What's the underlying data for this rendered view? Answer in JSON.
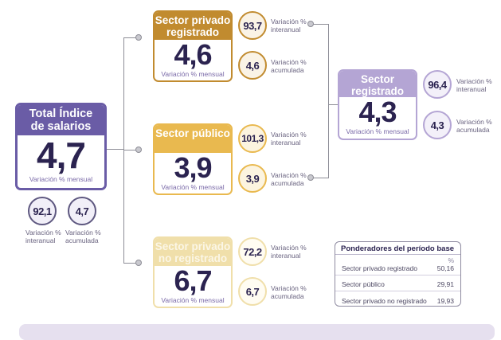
{
  "total": {
    "title": "Total Índice de salarios",
    "value": "4,7",
    "sub": "Variación % mensual",
    "interanual": "92,1",
    "acumulada": "4,7",
    "interanual_label": "Variación % interanual",
    "acumulada_label": "Variación % acumulada"
  },
  "sectors": [
    {
      "title": "Sector privado registrado",
      "value": "4,6",
      "sub": "Variación % mensual",
      "interanual": "93,7",
      "acumulada": "4,6",
      "interanual_label": "Variación % interanual",
      "acumulada_label": "Variación % acumulada",
      "color": "#c18b2f"
    },
    {
      "title": "Sector público",
      "value": "3,9",
      "sub": "Variación % mensual",
      "interanual": "101,3",
      "acumulada": "3,9",
      "interanual_label": "Variación % interanual",
      "acumulada_label": "Variación % acumulada",
      "color": "#e9b94f"
    },
    {
      "title": "Sector privado no registrado",
      "value": "6,7",
      "sub": "Variación % mensual",
      "interanual": "72,2",
      "acumulada": "6,7",
      "interanual_label": "Variación % interanual",
      "acumulada_label": "Variación % acumulada",
      "color": "#f0dfaa"
    }
  ],
  "registrado": {
    "title": "Sector registrado",
    "value": "4,3",
    "sub": "Variación % mensual",
    "interanual": "96,4",
    "acumulada": "4,3",
    "interanual_label": "Variación % interanual",
    "acumulada_label": "Variación % acumulada",
    "color": "#b4a5d4"
  },
  "table": {
    "title": "Ponderadores del período base",
    "unit": "%",
    "rows": [
      {
        "label": "Sector privado registrado",
        "value": "50,16"
      },
      {
        "label": "Sector público",
        "value": "29,91"
      },
      {
        "label": "Sector privado no registrado",
        "value": "19,93"
      }
    ]
  }
}
